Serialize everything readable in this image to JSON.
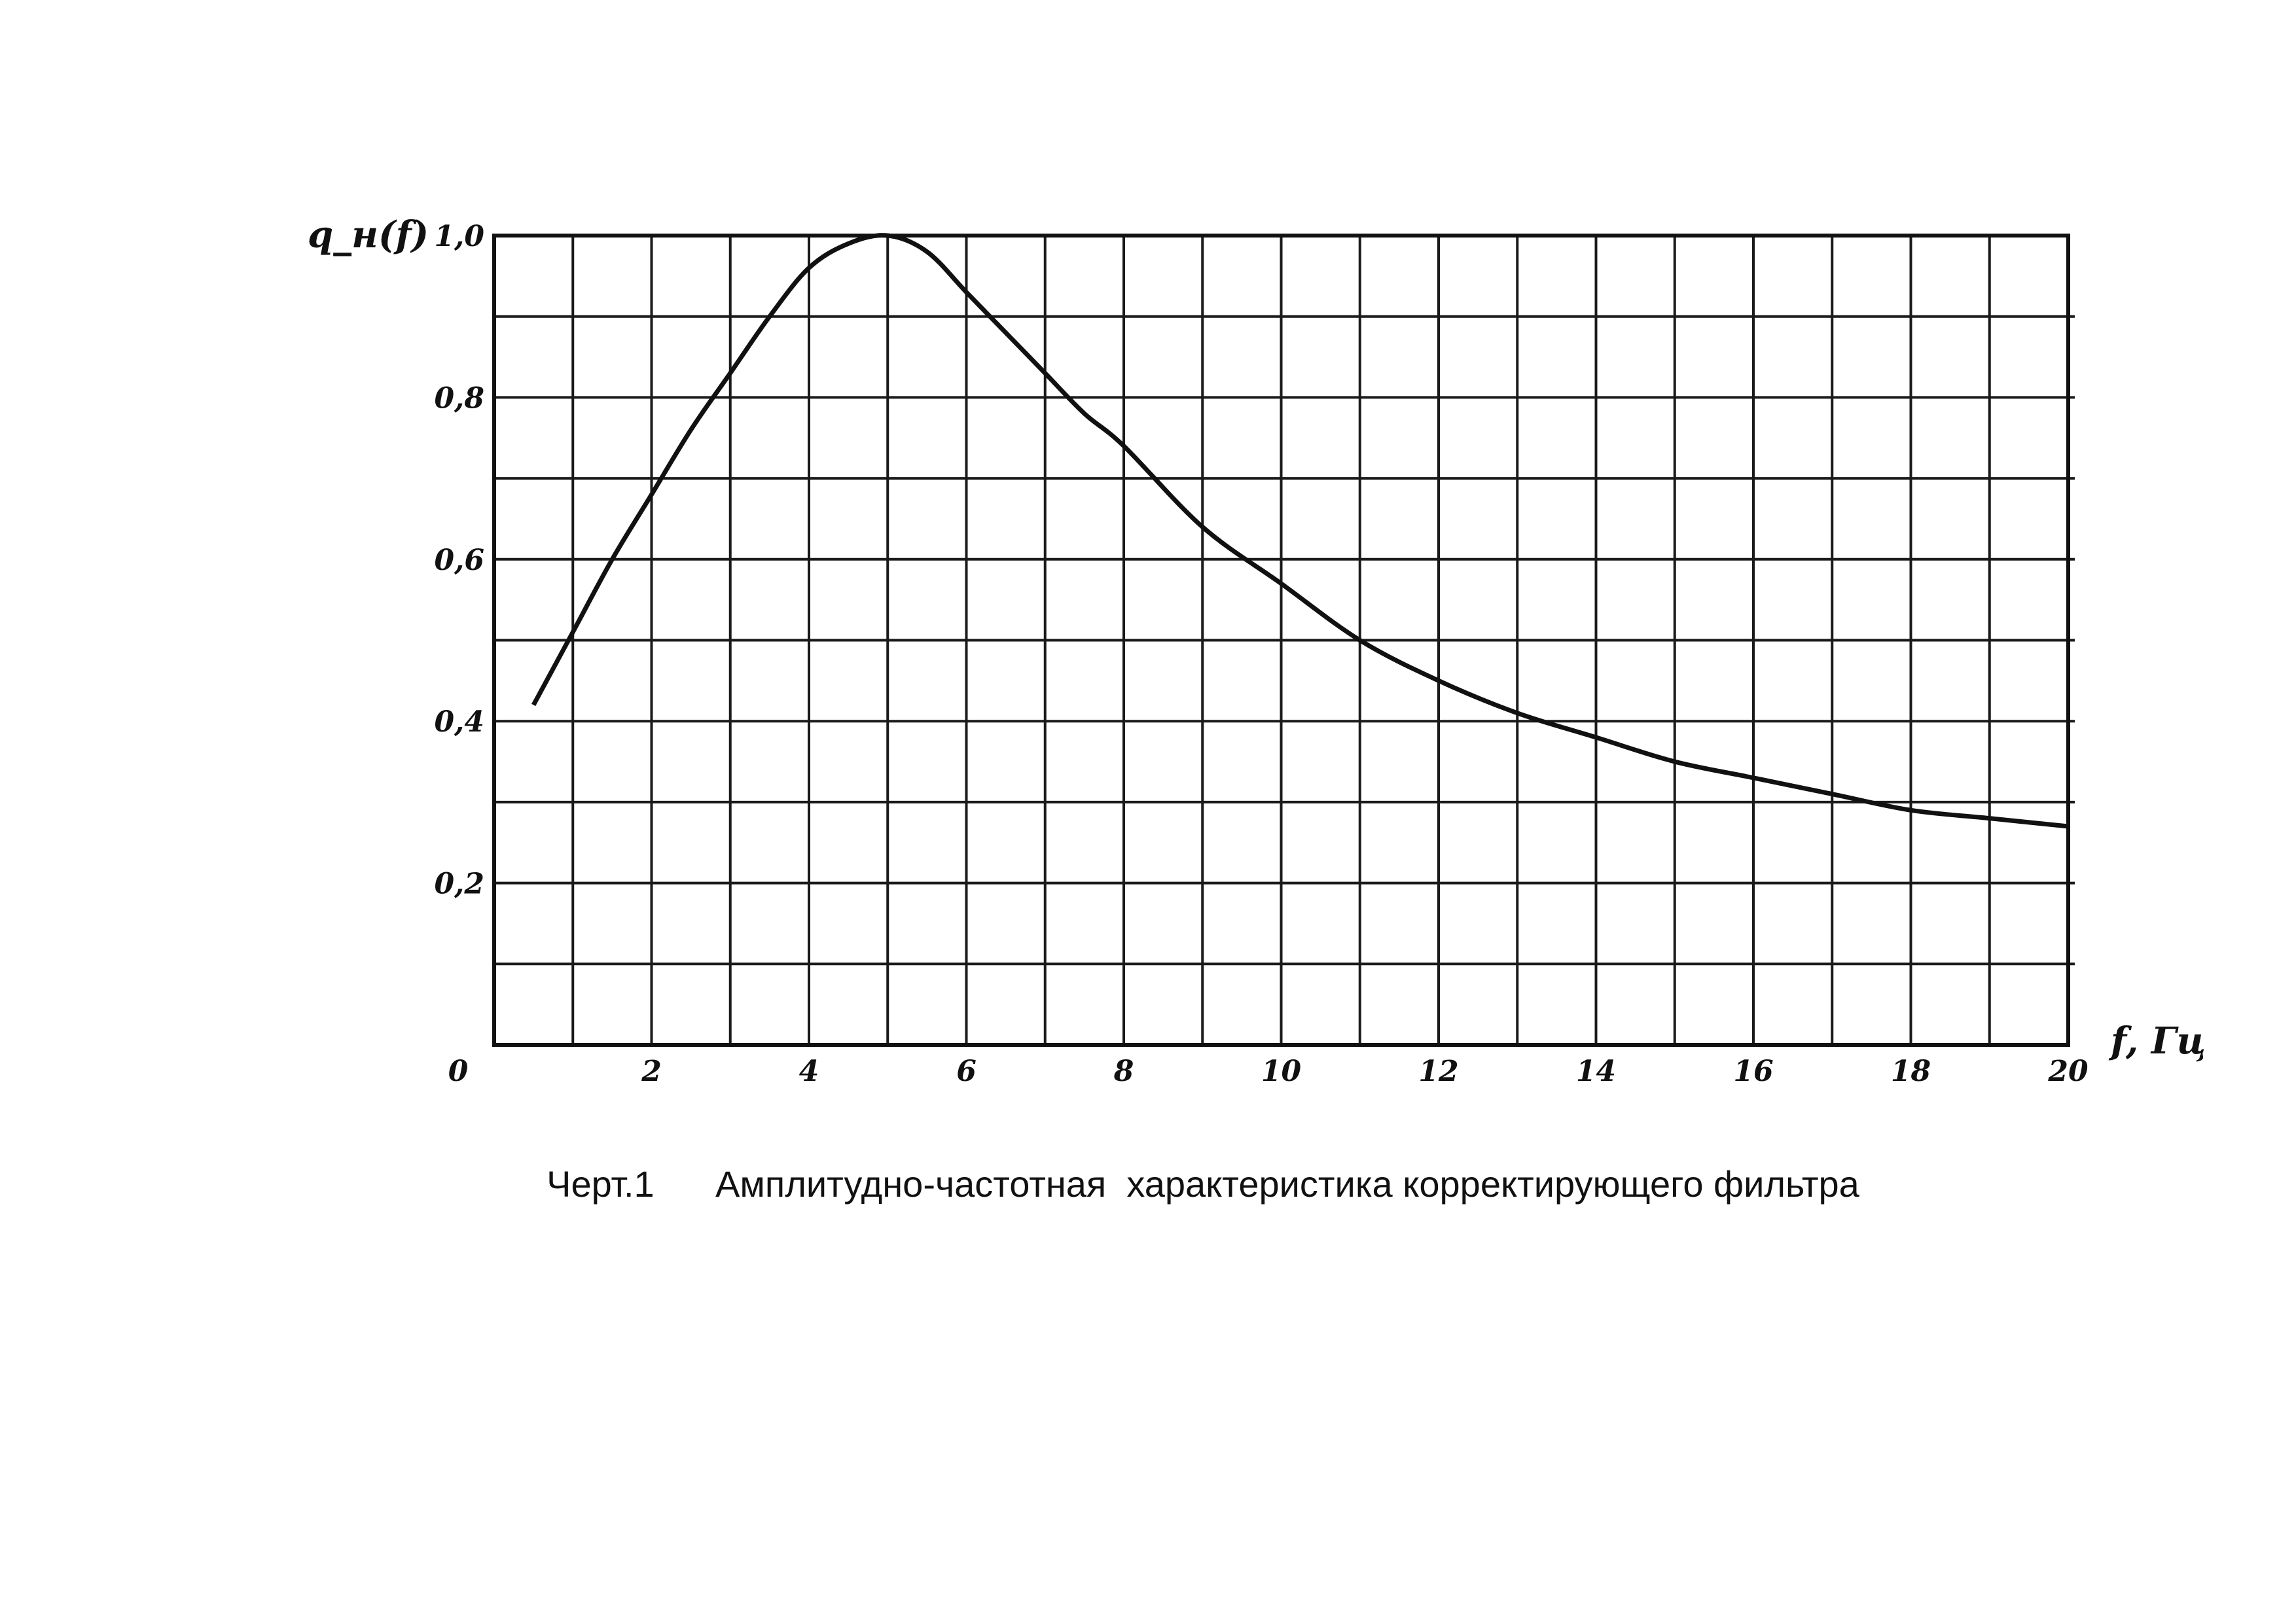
{
  "chart_data": {
    "type": "line",
    "xlabel": "f, Гц",
    "ylabel": "q_н(f)",
    "xlim": [
      0,
      20
    ],
    "ylim": [
      0,
      1.0
    ],
    "x_ticks": [
      "0",
      "2",
      "4",
      "6",
      "8",
      "10",
      "12",
      "14",
      "16",
      "18",
      "20"
    ],
    "x_tick_values": [
      0,
      2,
      4,
      6,
      8,
      10,
      12,
      14,
      16,
      18,
      20
    ],
    "y_ticks": [
      "0,2",
      "0,4",
      "0,6",
      "0,8",
      "1,0"
    ],
    "y_tick_values": [
      0.2,
      0.4,
      0.6,
      0.8,
      1.0
    ],
    "grid": true,
    "series": [
      {
        "x": [
          0.5,
          1.0,
          1.5,
          2.0,
          2.5,
          3.0,
          3.5,
          4.0,
          4.5,
          5.0,
          5.5,
          6.0,
          6.5,
          7.0,
          7.5,
          8.0,
          9.0,
          10.0,
          11.0,
          12.0,
          13.0,
          14.0,
          15.0,
          16.0,
          17.0,
          18.0,
          19.0,
          20.0
        ],
        "y": [
          0.42,
          0.51,
          0.6,
          0.68,
          0.76,
          0.83,
          0.9,
          0.96,
          0.99,
          1.0,
          0.98,
          0.93,
          0.88,
          0.83,
          0.78,
          0.74,
          0.64,
          0.57,
          0.5,
          0.45,
          0.41,
          0.38,
          0.35,
          0.33,
          0.31,
          0.29,
          0.28,
          0.27
        ]
      }
    ],
    "colors": {
      "ink": "#111111",
      "grid": "#1a1a1a"
    }
  },
  "caption": {
    "label": "Черт.1",
    "text": "Амплитудно-частотная  характеристика корректирующего фильтра"
  }
}
